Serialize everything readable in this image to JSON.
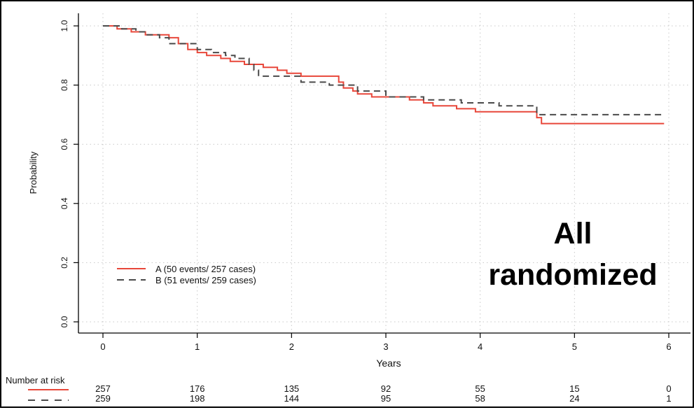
{
  "chart_data": {
    "type": "line",
    "title": "",
    "xlabel": "Years",
    "ylabel": "Probability",
    "xlim": [
      0,
      6
    ],
    "ylim": [
      0,
      1
    ],
    "x_ticks": [
      "0",
      "1",
      "2",
      "3",
      "4",
      "5",
      "6"
    ],
    "y_ticks": [
      "0.0",
      "0.2",
      "0.4",
      "0.6",
      "0.8",
      "1.0"
    ],
    "grid": true,
    "legend_position": "bottom-left",
    "annotation": [
      "All",
      "randomized"
    ],
    "series": [
      {
        "name": "A (50 events/ 257 cases)",
        "color": "#e8473a",
        "style": "solid",
        "points": [
          [
            0,
            1.0
          ],
          [
            0.15,
            1.0
          ],
          [
            0.15,
            0.99
          ],
          [
            0.3,
            0.99
          ],
          [
            0.3,
            0.98
          ],
          [
            0.45,
            0.98
          ],
          [
            0.45,
            0.97
          ],
          [
            0.7,
            0.97
          ],
          [
            0.7,
            0.96
          ],
          [
            0.8,
            0.96
          ],
          [
            0.8,
            0.94
          ],
          [
            0.9,
            0.94
          ],
          [
            0.9,
            0.92
          ],
          [
            1.0,
            0.92
          ],
          [
            1.0,
            0.91
          ],
          [
            1.1,
            0.91
          ],
          [
            1.1,
            0.9
          ],
          [
            1.25,
            0.9
          ],
          [
            1.25,
            0.89
          ],
          [
            1.35,
            0.89
          ],
          [
            1.35,
            0.88
          ],
          [
            1.5,
            0.88
          ],
          [
            1.5,
            0.87
          ],
          [
            1.7,
            0.87
          ],
          [
            1.7,
            0.86
          ],
          [
            1.85,
            0.86
          ],
          [
            1.85,
            0.85
          ],
          [
            1.95,
            0.85
          ],
          [
            1.95,
            0.84
          ],
          [
            2.1,
            0.84
          ],
          [
            2.1,
            0.83
          ],
          [
            2.5,
            0.83
          ],
          [
            2.5,
            0.81
          ],
          [
            2.55,
            0.81
          ],
          [
            2.55,
            0.79
          ],
          [
            2.65,
            0.79
          ],
          [
            2.65,
            0.78
          ],
          [
            2.7,
            0.78
          ],
          [
            2.7,
            0.77
          ],
          [
            2.85,
            0.77
          ],
          [
            2.85,
            0.76
          ],
          [
            3.25,
            0.76
          ],
          [
            3.25,
            0.75
          ],
          [
            3.4,
            0.75
          ],
          [
            3.4,
            0.74
          ],
          [
            3.5,
            0.74
          ],
          [
            3.5,
            0.73
          ],
          [
            3.75,
            0.73
          ],
          [
            3.75,
            0.72
          ],
          [
            3.95,
            0.72
          ],
          [
            3.95,
            0.71
          ],
          [
            4.6,
            0.71
          ],
          [
            4.6,
            0.69
          ],
          [
            4.65,
            0.69
          ],
          [
            4.65,
            0.67
          ],
          [
            5.95,
            0.67
          ]
        ]
      },
      {
        "name": "B (51 events/ 259 cases)",
        "color": "#4a4a4a",
        "style": "dashed",
        "points": [
          [
            0,
            1.0
          ],
          [
            0.2,
            1.0
          ],
          [
            0.2,
            0.99
          ],
          [
            0.35,
            0.99
          ],
          [
            0.35,
            0.98
          ],
          [
            0.45,
            0.98
          ],
          [
            0.45,
            0.97
          ],
          [
            0.6,
            0.97
          ],
          [
            0.6,
            0.96
          ],
          [
            0.7,
            0.96
          ],
          [
            0.7,
            0.94
          ],
          [
            1.0,
            0.94
          ],
          [
            1.0,
            0.92
          ],
          [
            1.15,
            0.92
          ],
          [
            1.15,
            0.91
          ],
          [
            1.3,
            0.91
          ],
          [
            1.3,
            0.9
          ],
          [
            1.4,
            0.9
          ],
          [
            1.4,
            0.89
          ],
          [
            1.55,
            0.89
          ],
          [
            1.55,
            0.87
          ],
          [
            1.6,
            0.87
          ],
          [
            1.6,
            0.85
          ],
          [
            1.65,
            0.85
          ],
          [
            1.65,
            0.83
          ],
          [
            2.1,
            0.83
          ],
          [
            2.1,
            0.81
          ],
          [
            2.4,
            0.81
          ],
          [
            2.4,
            0.8
          ],
          [
            2.7,
            0.8
          ],
          [
            2.7,
            0.78
          ],
          [
            3.0,
            0.78
          ],
          [
            3.0,
            0.76
          ],
          [
            3.4,
            0.76
          ],
          [
            3.4,
            0.75
          ],
          [
            3.8,
            0.75
          ],
          [
            3.8,
            0.74
          ],
          [
            4.2,
            0.74
          ],
          [
            4.2,
            0.73
          ],
          [
            4.6,
            0.73
          ],
          [
            4.6,
            0.7
          ],
          [
            5.95,
            0.7
          ]
        ]
      }
    ],
    "risk_table": {
      "header": "Number at risk",
      "rows": [
        {
          "style": "solid",
          "color": "#e8473a",
          "values": [
            "257",
            "176",
            "135",
            "92",
            "55",
            "15",
            "0"
          ]
        },
        {
          "style": "dashed",
          "color": "#4a4a4a",
          "values": [
            "259",
            "198",
            "144",
            "95",
            "58",
            "24",
            "1"
          ]
        }
      ]
    }
  }
}
